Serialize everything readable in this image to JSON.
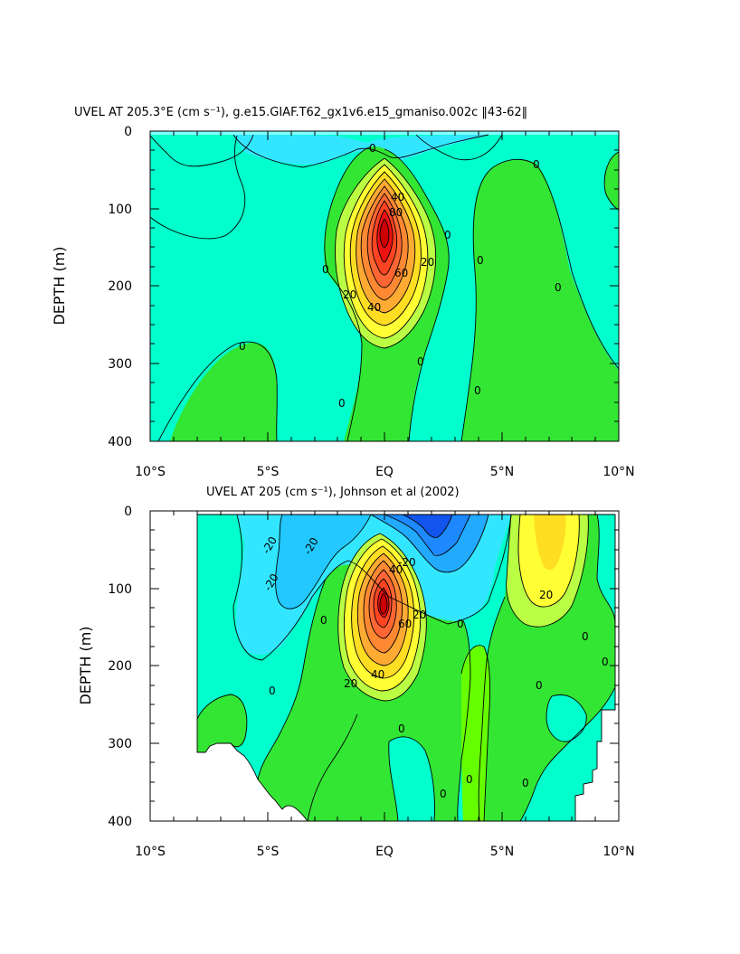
{
  "chart_data": [
    {
      "type": "contour",
      "title": "UVEL AT 205.3°E (cm s⁻¹), g.e15.GIAF.T62_gx1v6.e15_gmaniso.002c ‖43-62‖",
      "xlabel": "",
      "ylabel": "DEPTH (m)",
      "xlim": [
        -10,
        10
      ],
      "ylim": [
        400,
        0
      ],
      "x_ticks": [
        "10°S",
        "5°S",
        "EQ",
        "5°N",
        "10°N"
      ],
      "y_ticks": [
        "0",
        "100",
        "200",
        "300",
        "400"
      ],
      "contour_interval": 10,
      "contour_labels": [
        "0",
        "0",
        "0",
        "0",
        "0",
        "0",
        "0",
        "0",
        "0",
        "0",
        "20",
        "20",
        "40",
        "40",
        "60",
        "80"
      ],
      "features": [
        {
          "kind": "jet_core",
          "x": 0,
          "y": 130,
          "value": 90
        },
        {
          "kind": "westward_surface",
          "x": 0.5,
          "y": 10,
          "value": -10
        },
        {
          "kind": "westward_surface",
          "x": -4,
          "y": 30,
          "value": -5
        }
      ]
    },
    {
      "type": "contour",
      "title": "UVEL AT 205 (cm s⁻¹), Johnson et al (2002)",
      "xlabel": "",
      "ylabel": "DEPTH (m)",
      "xlim": [
        -10,
        10
      ],
      "ylim": [
        400,
        0
      ],
      "x_ticks": [
        "10°S",
        "5°S",
        "EQ",
        "5°N",
        "10°N"
      ],
      "y_ticks": [
        "0",
        "100",
        "200",
        "300",
        "400"
      ],
      "contour_interval": 10,
      "contour_labels": [
        "-20",
        "-20",
        "-20",
        "-20",
        "0",
        "0",
        "0",
        "0",
        "0",
        "0",
        "0",
        "0",
        "0",
        "0",
        "20",
        "20",
        "20",
        "40",
        "40",
        "60"
      ],
      "features": [
        {
          "kind": "jet_core",
          "x": 0,
          "y": 130,
          "value": 90
        },
        {
          "kind": "westward_surface",
          "x": 1.7,
          "y": 15,
          "value": -50
        },
        {
          "kind": "nec_eastward",
          "x": 7,
          "y": 60,
          "value": 30
        }
      ]
    }
  ]
}
